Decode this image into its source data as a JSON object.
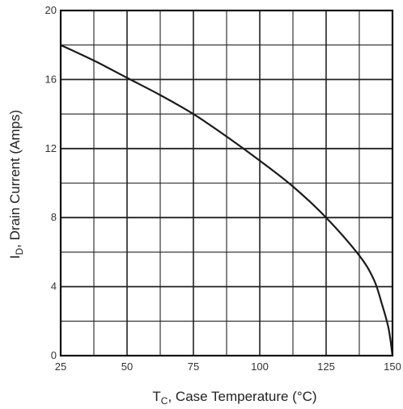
{
  "chart_data": {
    "type": "line",
    "xlabel": "T",
    "xlabel_sub": "C",
    "xlabel_rest": ", Case Temperature (°C)",
    "ylabel": "I",
    "ylabel_sub": "D",
    "ylabel_rest": ", Drain Current (Amps)",
    "xlim": [
      25,
      150
    ],
    "ylim": [
      0,
      20
    ],
    "x_ticks": [
      25,
      50,
      75,
      100,
      125,
      150
    ],
    "y_ticks": [
      0,
      4,
      8,
      12,
      16,
      20
    ],
    "x_tick_labels": [
      "25",
      "50",
      "75",
      "100",
      "125",
      "150"
    ],
    "y_tick_labels": [
      "0",
      "4",
      "8",
      "12",
      "16",
      "20"
    ],
    "grid": true,
    "series": [
      {
        "x": [
          25,
          37.5,
          50,
          62.5,
          75,
          87.5,
          100,
          112.5,
          125,
          137.5,
          143,
          146,
          148.5,
          150
        ],
        "y": [
          18.0,
          17.1,
          16.1,
          15.1,
          14.0,
          12.7,
          11.3,
          9.8,
          8.0,
          5.8,
          4.4,
          3.0,
          1.6,
          0
        ]
      }
    ]
  }
}
